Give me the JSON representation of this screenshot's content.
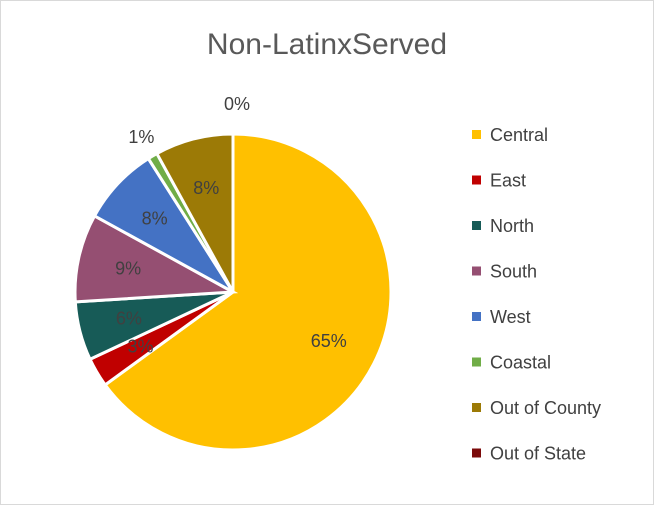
{
  "chart_data": {
    "type": "pie",
    "title": "Non-LatinxServed",
    "categories": [
      "Central",
      "East",
      "North",
      "South",
      "West",
      "Coastal",
      "Out of County",
      "Out of State"
    ],
    "values": [
      65,
      3,
      6,
      9,
      8,
      1,
      8,
      0
    ],
    "data_labels": [
      "65%",
      "3%",
      "6%",
      "9%",
      "8%",
      "1%",
      "8%",
      "0%"
    ],
    "colors": [
      "#FFC000",
      "#C00000",
      "#175B57",
      "#954F72",
      "#4472C4",
      "#70AD47",
      "#9C7A06",
      "#7B0A0A"
    ],
    "legend_position": "right"
  }
}
